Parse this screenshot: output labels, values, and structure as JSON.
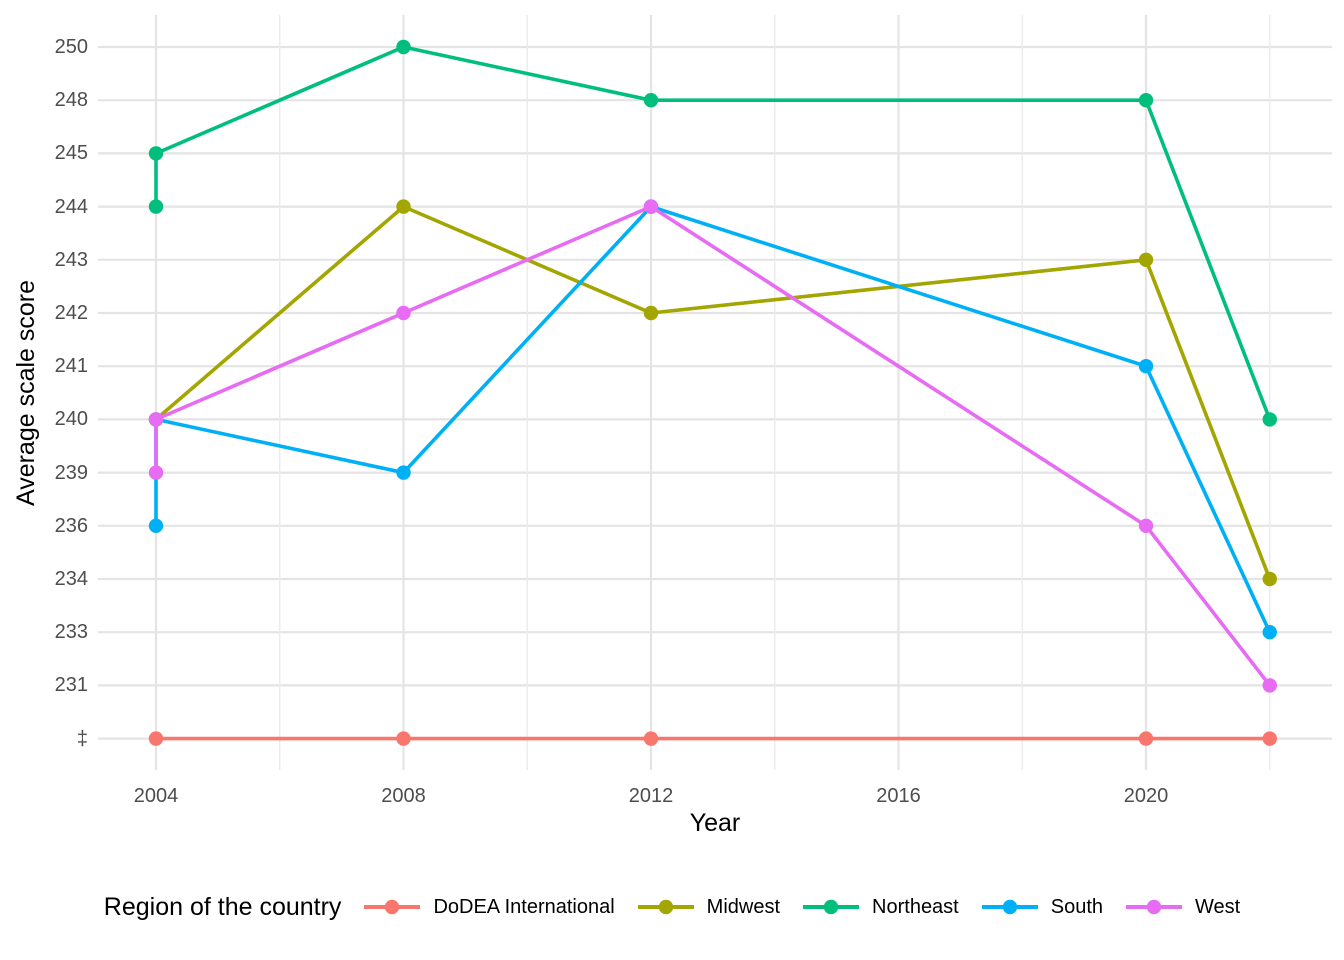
{
  "chart": {
    "y_axis_title": "Average scale score",
    "x_axis_title": "Year",
    "legend_title": "Region of the country"
  },
  "chart_data": {
    "type": "line",
    "title": "",
    "xlabel": "Year",
    "ylabel": "Average scale score",
    "legend_title": "Region of the country",
    "legend_position": "bottom",
    "grid": true,
    "y_scale": "discrete",
    "y_levels_top_to_bottom": [
      "250",
      "248",
      "245",
      "244",
      "243",
      "242",
      "241",
      "240",
      "239",
      "236",
      "234",
      "233",
      "231",
      "‡"
    ],
    "suppressed_symbol": "‡",
    "x_tick_labels": [
      "2004",
      "2008",
      "2012",
      "2016",
      "2020"
    ],
    "x_major_gridlines": [
      2004,
      2008,
      2012,
      2016,
      2020
    ],
    "x_minor_gridlines": [
      2006,
      2010,
      2014,
      2018,
      2022
    ],
    "x_range": [
      2003.06,
      2022.94
    ],
    "series": [
      {
        "name": "DoDEA International",
        "color": "#F8766D",
        "points": [
          {
            "year": 2004,
            "score": "‡"
          },
          {
            "year": 2008,
            "score": "‡"
          },
          {
            "year": 2012,
            "score": "‡"
          },
          {
            "year": 2020,
            "score": "‡"
          },
          {
            "year": 2022,
            "score": "‡"
          }
        ]
      },
      {
        "name": "Midwest",
        "color": "#A3A500",
        "points": [
          {
            "year": 2004,
            "score": "240"
          },
          {
            "year": 2008,
            "score": "244"
          },
          {
            "year": 2012,
            "score": "242"
          },
          {
            "year": 2020,
            "score": "243"
          },
          {
            "year": 2022,
            "score": "234"
          }
        ]
      },
      {
        "name": "Northeast",
        "color": "#00BF7D",
        "points": [
          {
            "year": 2004,
            "score": "244"
          },
          {
            "year": 2004,
            "score": "245"
          },
          {
            "year": 2008,
            "score": "250"
          },
          {
            "year": 2012,
            "score": "248"
          },
          {
            "year": 2020,
            "score": "248"
          },
          {
            "year": 2022,
            "score": "240"
          }
        ]
      },
      {
        "name": "South",
        "color": "#00B0F6",
        "points": [
          {
            "year": 2004,
            "score": "236"
          },
          {
            "year": 2004,
            "score": "240"
          },
          {
            "year": 2008,
            "score": "239"
          },
          {
            "year": 2012,
            "score": "244"
          },
          {
            "year": 2020,
            "score": "241"
          },
          {
            "year": 2022,
            "score": "233"
          }
        ]
      },
      {
        "name": "West",
        "color": "#E76BF3",
        "points": [
          {
            "year": 2004,
            "score": "239"
          },
          {
            "year": 2004,
            "score": "240"
          },
          {
            "year": 2008,
            "score": "242"
          },
          {
            "year": 2012,
            "score": "244"
          },
          {
            "year": 2020,
            "score": "236"
          },
          {
            "year": 2022,
            "score": "231"
          }
        ]
      }
    ],
    "style": {
      "grid_major_color": "#E4E4E4",
      "grid_minor_color": "#ECECEC",
      "tick_label_color": "#4D4D4D",
      "text_color": "#000000",
      "background": "#FFFFFF"
    }
  }
}
